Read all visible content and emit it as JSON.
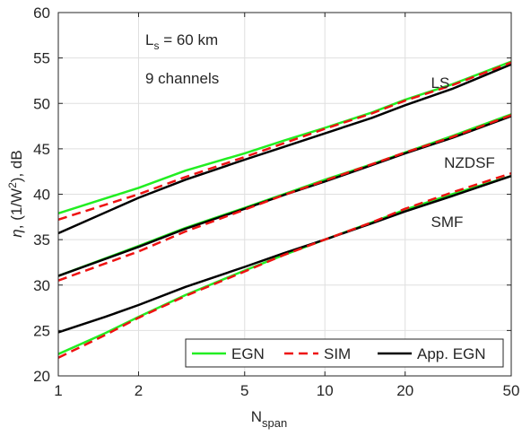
{
  "chart_data": {
    "type": "line",
    "x_scale": "log",
    "xlim": [
      1,
      50
    ],
    "ylim": [
      20,
      60
    ],
    "xticks": [
      1,
      2,
      5,
      10,
      20,
      50
    ],
    "yticks": [
      20,
      25,
      30,
      35,
      40,
      45,
      50,
      55,
      60
    ],
    "xlabel": {
      "main": "N",
      "sub": "span"
    },
    "ylabel": {
      "sym": "η",
      "pre": ", (1/W",
      "sup": "2",
      "post": "), dB"
    },
    "grid": true,
    "legend": {
      "placement": "bottom-right",
      "orientation": "horizontal"
    },
    "annotations": {
      "ls_line": {
        "main": "L",
        "sub": "s",
        "rest": " = 60 km"
      },
      "channels": "9 channels"
    },
    "groups": [
      {
        "label": "LS",
        "label_at": {
          "x": 25,
          "y": 51.7
        },
        "x": [
          1,
          2,
          3,
          5,
          7,
          10,
          15,
          20,
          30,
          50
        ],
        "series": {
          "EGN": [
            37.9,
            40.7,
            42.6,
            44.5,
            45.9,
            47.3,
            49.0,
            50.4,
            52.1,
            54.6
          ],
          "SIM": [
            37.2,
            40.0,
            41.9,
            44.1,
            45.6,
            47.2,
            48.9,
            50.3,
            52.0,
            54.5
          ],
          "App. EGN": [
            35.7,
            39.6,
            41.6,
            43.8,
            45.2,
            46.7,
            48.4,
            49.8,
            51.6,
            54.3
          ]
        }
      },
      {
        "label": "NZDSF",
        "label_at": {
          "x": 28,
          "y": 42.9
        },
        "x": [
          1,
          2,
          3,
          5,
          7,
          10,
          15,
          20,
          30,
          50
        ],
        "series": {
          "EGN": [
            31.0,
            34.3,
            36.3,
            38.5,
            40.0,
            41.6,
            43.3,
            44.6,
            46.4,
            48.8
          ],
          "SIM": [
            30.5,
            33.7,
            35.9,
            38.3,
            39.9,
            41.5,
            43.3,
            44.6,
            46.3,
            48.7
          ],
          "App. EGN": [
            31.0,
            34.2,
            36.2,
            38.4,
            39.9,
            41.4,
            43.2,
            44.5,
            46.2,
            48.6
          ]
        }
      },
      {
        "label": "SMF",
        "label_at": {
          "x": 25,
          "y": 36.4
        },
        "x": [
          1,
          1.5,
          2,
          3,
          5,
          7,
          10,
          15,
          20,
          30,
          50
        ],
        "series": {
          "EGN": [
            22.4,
            24.7,
            26.5,
            28.9,
            31.6,
            33.3,
            35.0,
            36.9,
            38.3,
            40.0,
            42.0
          ],
          "SIM": [
            22.0,
            24.5,
            26.4,
            28.8,
            31.5,
            33.3,
            35.0,
            36.9,
            38.4,
            40.2,
            42.3
          ],
          "App. EGN": [
            24.8,
            26.5,
            27.8,
            29.8,
            32.0,
            33.5,
            35.0,
            36.8,
            38.1,
            39.8,
            42.0
          ]
        }
      }
    ],
    "series_styles": [
      {
        "name": "EGN",
        "color": "#22ee22",
        "dash": "solid"
      },
      {
        "name": "SIM",
        "color": "#ee1111",
        "dash": "dashed"
      },
      {
        "name": "App. EGN",
        "color": "#000000",
        "dash": "solid"
      }
    ]
  }
}
